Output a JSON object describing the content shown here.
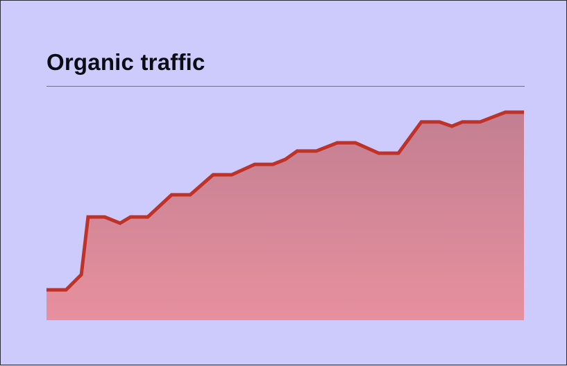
{
  "chart_data": {
    "type": "area",
    "title": "Organic traffic",
    "xlabel": "",
    "ylabel": "",
    "grid": false,
    "legend": "none",
    "xlim": [
      0,
      100
    ],
    "ylim": [
      0,
      100
    ],
    "x": [
      0,
      4.1,
      7.3,
      8.7,
      12.2,
      15.4,
      17.6,
      21.2,
      26.2,
      30.1,
      34.9,
      38.8,
      43.6,
      47.4,
      50,
      52.5,
      56.5,
      60.9,
      64.7,
      69.6,
      73.7,
      78.5,
      82.3,
      84.9,
      87.1,
      90.8,
      96.1,
      100
    ],
    "series": [
      {
        "values": [
          14.1,
          14.1,
          21.2,
          47.9,
          47.9,
          45.0,
          47.9,
          47.9,
          58.2,
          58.2,
          67.5,
          67.5,
          72.3,
          72.3,
          74.6,
          78.5,
          78.5,
          82.3,
          82.3,
          77.5,
          77.5,
          92.0,
          92.0,
          90.0,
          92.0,
          92.0,
          96.5,
          96.5
        ]
      }
    ],
    "colors": {
      "line": "#bf3228",
      "fill_top": "#c27f91",
      "fill_bottom": "#e7909e",
      "background": "#cdcbfb",
      "rule": "#6f6c8e"
    }
  }
}
